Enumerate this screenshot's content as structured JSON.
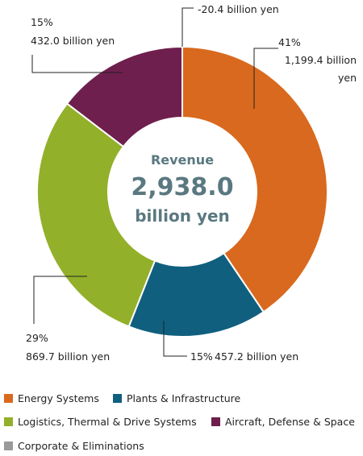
{
  "chart_data": {
    "type": "donut",
    "center_title": "Revenue",
    "center_value": "2,938.0",
    "center_unit": "billion yen",
    "categories": [
      "Energy Systems",
      "Plants & Infrastructure",
      "Logistics, Thermal & Drive Systems",
      "Aircraft, Defense & Space",
      "Corporate & Eliminations"
    ],
    "values": [
      1199.4,
      457.2,
      869.7,
      432.0,
      -20.4
    ],
    "value_labels": [
      "1,199.4 billion yen",
      "457.2 billion yen",
      "869.7 billion yen",
      "432.0 billion yen",
      "-20.4 billion yen"
    ],
    "percents": [
      41,
      15,
      29,
      15,
      null
    ],
    "percent_labels": [
      "41%",
      "15%",
      "29%",
      "15%",
      null
    ],
    "colors": [
      "#d9691e",
      "#105f7f",
      "#93b02a",
      "#6e1f4d",
      "#9a9a9a"
    ]
  }
}
